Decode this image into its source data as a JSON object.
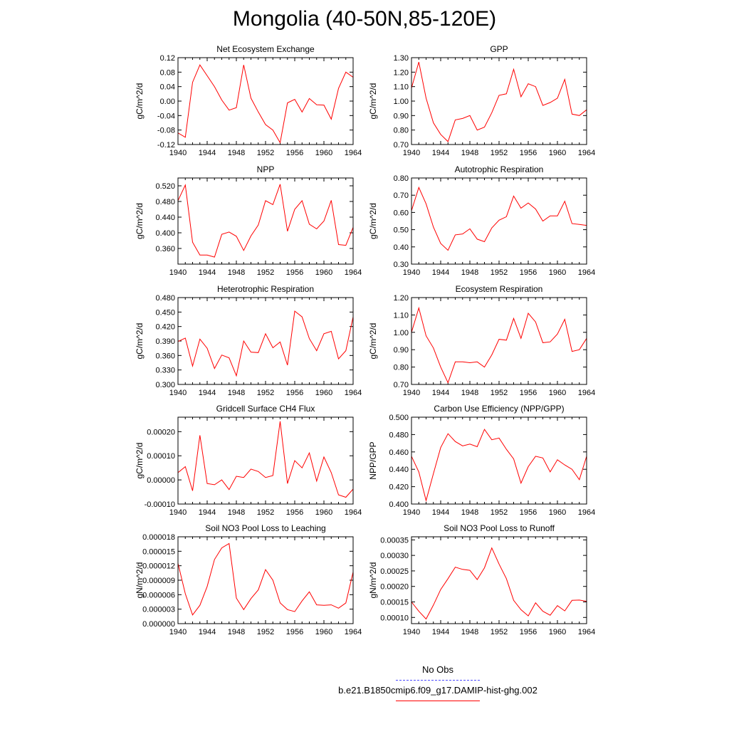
{
  "figure": {
    "title": "Mongolia (40-50N,85-120E)"
  },
  "legend": {
    "obs_label": "No Obs",
    "model_label": "b.e21.B1850cmip6.f09_g17.DAMIP-hist-ghg.002",
    "obs_color": "#4c4cff",
    "model_color": "#ff0000"
  },
  "chart_data": [
    {
      "type": "line",
      "title": "Net Ecosystem Exchange",
      "ylabel": "gC/m^2/d",
      "xlim": [
        1940,
        1964
      ],
      "ylim": [
        -0.12,
        0.12
      ],
      "xticks": [
        1940,
        1944,
        1948,
        1952,
        1956,
        1960,
        1964
      ],
      "yticks": [
        "-0.12",
        "-0.08",
        "-0.04",
        "0.00",
        "0.04",
        "0.08",
        "0.12"
      ],
      "series": [
        {
          "color": "#ff0000",
          "x": [
            1940,
            1941,
            1942,
            1943,
            1944,
            1945,
            1946,
            1947,
            1948,
            1949,
            1950,
            1951,
            1952,
            1953,
            1954,
            1955,
            1956,
            1957,
            1958,
            1959,
            1960,
            1961,
            1962,
            1963,
            1964
          ],
          "y": [
            -0.088,
            -0.1,
            0.052,
            0.1,
            0.07,
            0.04,
            0.003,
            -0.025,
            -0.018,
            0.1,
            0.008,
            -0.03,
            -0.065,
            -0.08,
            -0.115,
            -0.005,
            0.005,
            -0.03,
            0.007,
            -0.01,
            -0.011,
            -0.05,
            0.035,
            0.08,
            0.066
          ]
        }
      ]
    },
    {
      "type": "line",
      "title": "GPP",
      "ylabel": "gC/m^2/d",
      "xlim": [
        1940,
        1964
      ],
      "ylim": [
        0.7,
        1.3
      ],
      "xticks": [
        1940,
        1944,
        1948,
        1952,
        1956,
        1960,
        1964
      ],
      "yticks": [
        "0.70",
        "0.80",
        "0.90",
        "1.00",
        "1.10",
        "1.20",
        "1.30"
      ],
      "series": [
        {
          "color": "#ff0000",
          "x": [
            1940,
            1941,
            1942,
            1943,
            1944,
            1945,
            1946,
            1947,
            1948,
            1949,
            1950,
            1951,
            1952,
            1953,
            1954,
            1955,
            1956,
            1957,
            1958,
            1959,
            1960,
            1961,
            1962,
            1963,
            1964
          ],
          "y": [
            1.09,
            1.27,
            1.02,
            0.85,
            0.77,
            0.72,
            0.87,
            0.88,
            0.9,
            0.8,
            0.82,
            0.92,
            1.04,
            1.05,
            1.22,
            1.03,
            1.12,
            1.1,
            0.97,
            0.99,
            1.02,
            1.15,
            0.91,
            0.9,
            0.94
          ]
        }
      ]
    },
    {
      "type": "line",
      "title": "NPP",
      "ylabel": "gC/m^2/d",
      "xlim": [
        1940,
        1964
      ],
      "ylim": [
        0.32,
        0.54
      ],
      "xticks": [
        1940,
        1944,
        1948,
        1952,
        1956,
        1960,
        1964
      ],
      "yticks": [
        "0.360",
        "0.400",
        "0.440",
        "0.480",
        "0.520"
      ],
      "ytick_values": [
        0.36,
        0.4,
        0.44,
        0.48,
        0.52
      ],
      "series": [
        {
          "color": "#ff0000",
          "x": [
            1940,
            1941,
            1942,
            1943,
            1944,
            1945,
            1946,
            1947,
            1948,
            1949,
            1950,
            1951,
            1952,
            1953,
            1954,
            1955,
            1956,
            1957,
            1958,
            1959,
            1960,
            1961,
            1962,
            1963,
            1964
          ],
          "y": [
            0.482,
            0.522,
            0.376,
            0.343,
            0.343,
            0.338,
            0.396,
            0.402,
            0.391,
            0.355,
            0.392,
            0.42,
            0.482,
            0.472,
            0.524,
            0.404,
            0.46,
            0.482,
            0.422,
            0.41,
            0.43,
            0.483,
            0.37,
            0.368,
            0.414
          ]
        }
      ]
    },
    {
      "type": "line",
      "title": "Autotrophic Respiration",
      "ylabel": "gC/m^2/d",
      "xlim": [
        1940,
        1964
      ],
      "ylim": [
        0.3,
        0.8
      ],
      "xticks": [
        1940,
        1944,
        1948,
        1952,
        1956,
        1960,
        1964
      ],
      "yticks": [
        "0.30",
        "0.40",
        "0.50",
        "0.60",
        "0.70",
        "0.80"
      ],
      "series": [
        {
          "color": "#ff0000",
          "x": [
            1940,
            1941,
            1942,
            1943,
            1944,
            1945,
            1946,
            1947,
            1948,
            1949,
            1950,
            1951,
            1952,
            1953,
            1954,
            1955,
            1956,
            1957,
            1958,
            1959,
            1960,
            1961,
            1962,
            1963,
            1964
          ],
          "y": [
            0.61,
            0.745,
            0.65,
            0.515,
            0.42,
            0.38,
            0.47,
            0.475,
            0.505,
            0.445,
            0.43,
            0.51,
            0.555,
            0.575,
            0.695,
            0.625,
            0.655,
            0.62,
            0.55,
            0.58,
            0.58,
            0.665,
            0.535,
            0.53,
            0.525
          ]
        }
      ]
    },
    {
      "type": "line",
      "title": "Heterotrophic Respiration",
      "ylabel": "gC/m^2/d",
      "xlim": [
        1940,
        1964
      ],
      "ylim": [
        0.3,
        0.48
      ],
      "xticks": [
        1940,
        1944,
        1948,
        1952,
        1956,
        1960,
        1964
      ],
      "yticks": [
        "0.300",
        "0.330",
        "0.360",
        "0.390",
        "0.420",
        "0.450",
        "0.480"
      ],
      "series": [
        {
          "color": "#ff0000",
          "x": [
            1940,
            1941,
            1942,
            1943,
            1944,
            1945,
            1946,
            1947,
            1948,
            1949,
            1950,
            1951,
            1952,
            1953,
            1954,
            1955,
            1956,
            1957,
            1958,
            1959,
            1960,
            1961,
            1962,
            1963,
            1964
          ],
          "y": [
            0.389,
            0.396,
            0.338,
            0.394,
            0.375,
            0.333,
            0.361,
            0.355,
            0.318,
            0.39,
            0.367,
            0.366,
            0.405,
            0.376,
            0.388,
            0.34,
            0.452,
            0.44,
            0.395,
            0.37,
            0.405,
            0.41,
            0.353,
            0.37,
            0.44
          ]
        }
      ]
    },
    {
      "type": "line",
      "title": "Ecosystem Respiration",
      "ylabel": "gC/m^2/d",
      "xlim": [
        1940,
        1964
      ],
      "ylim": [
        0.7,
        1.2
      ],
      "xticks": [
        1940,
        1944,
        1948,
        1952,
        1956,
        1960,
        1964
      ],
      "yticks": [
        "0.70",
        "0.80",
        "0.90",
        "1.00",
        "1.10",
        "1.20"
      ],
      "series": [
        {
          "color": "#ff0000",
          "x": [
            1940,
            1941,
            1942,
            1943,
            1944,
            1945,
            1946,
            1947,
            1948,
            1949,
            1950,
            1951,
            1952,
            1953,
            1954,
            1955,
            1956,
            1957,
            1958,
            1959,
            1960,
            1961,
            1962,
            1963,
            1964
          ],
          "y": [
            1.0,
            1.14,
            0.98,
            0.91,
            0.8,
            0.71,
            0.83,
            0.83,
            0.825,
            0.83,
            0.8,
            0.87,
            0.96,
            0.955,
            1.08,
            0.965,
            1.11,
            1.06,
            0.94,
            0.945,
            0.99,
            1.075,
            0.89,
            0.9,
            0.965
          ]
        }
      ]
    },
    {
      "type": "line",
      "title": "Gridcell Surface CH4 Flux",
      "ylabel": "gC/m^2/d",
      "xlim": [
        1940,
        1964
      ],
      "ylim": [
        -0.0001,
        0.00026
      ],
      "xticks": [
        1940,
        1944,
        1948,
        1952,
        1956,
        1960,
        1964
      ],
      "yticks": [
        "-0.00010",
        "0.00000",
        "0.00010",
        "0.00020"
      ],
      "ytick_values": [
        -0.0001,
        0.0,
        0.0001,
        0.0002
      ],
      "series": [
        {
          "color": "#ff0000",
          "x": [
            1940,
            1941,
            1942,
            1943,
            1944,
            1945,
            1946,
            1947,
            1948,
            1949,
            1950,
            1951,
            1952,
            1953,
            1954,
            1955,
            1956,
            1957,
            1958,
            1959,
            1960,
            1961,
            1962,
            1963,
            1964
          ],
          "y": [
            3e-05,
            5.5e-05,
            -4.5e-05,
            0.000185,
            -1.5e-05,
            -2e-05,
            0.0,
            -4e-05,
            1.5e-05,
            1e-05,
            4.5e-05,
            3.5e-05,
            1e-05,
            1.8e-05,
            0.000243,
            -1.5e-05,
            8e-05,
            5e-05,
            0.000112,
            -5e-06,
            9.5e-05,
            3e-05,
            -6.2e-05,
            -7.2e-05,
            -3.8e-05
          ]
        }
      ]
    },
    {
      "type": "line",
      "title": "Carbon Use Efficiency (NPP/GPP)",
      "ylabel": "NPP/GPP",
      "xlim": [
        1940,
        1964
      ],
      "ylim": [
        0.4,
        0.5
      ],
      "xticks": [
        1940,
        1944,
        1948,
        1952,
        1956,
        1960,
        1964
      ],
      "yticks": [
        "0.400",
        "0.420",
        "0.440",
        "0.460",
        "0.480",
        "0.500"
      ],
      "series": [
        {
          "color": "#ff0000",
          "x": [
            1940,
            1941,
            1942,
            1943,
            1944,
            1945,
            1946,
            1947,
            1948,
            1949,
            1950,
            1951,
            1952,
            1953,
            1954,
            1955,
            1956,
            1957,
            1958,
            1959,
            1960,
            1961,
            1962,
            1963,
            1964
          ],
          "y": [
            0.455,
            0.437,
            0.404,
            0.435,
            0.465,
            0.481,
            0.472,
            0.467,
            0.469,
            0.466,
            0.486,
            0.474,
            0.476,
            0.463,
            0.452,
            0.424,
            0.443,
            0.455,
            0.453,
            0.437,
            0.451,
            0.445,
            0.44,
            0.428,
            0.455
          ]
        }
      ]
    },
    {
      "type": "line",
      "title": "Soil NO3 Pool Loss to Leaching",
      "ylabel": "gN/m^2/d",
      "xlim": [
        1940,
        1964
      ],
      "ylim": [
        0.0,
        1.8e-05
      ],
      "xticks": [
        1940,
        1944,
        1948,
        1952,
        1956,
        1960,
        1964
      ],
      "yticks": [
        "0.000000",
        "0.000003",
        "0.000006",
        "0.000009",
        "0.000012",
        "0.000015",
        "0.000018"
      ],
      "series": [
        {
          "color": "#ff0000",
          "x": [
            1940,
            1941,
            1942,
            1943,
            1944,
            1945,
            1946,
            1947,
            1948,
            1949,
            1950,
            1951,
            1952,
            1953,
            1954,
            1955,
            1956,
            1957,
            1958,
            1959,
            1960,
            1961,
            1962,
            1963,
            1964
          ],
          "y": [
            1.25e-05,
            6.2e-06,
            1.8e-06,
            3.8e-06,
            7.7e-06,
            1.33e-05,
            1.57e-05,
            1.66e-05,
            5.3e-06,
            2.9e-06,
            5.2e-06,
            7e-06,
            1.12e-05,
            9e-06,
            4.3e-06,
            2.9e-06,
            2.5e-06,
            4.7e-06,
            6.6e-06,
            3.9e-06,
            3.8e-06,
            3.9e-06,
            3.2e-06,
            4.3e-06,
            1.07e-05
          ]
        }
      ]
    },
    {
      "type": "line",
      "title": "Soil NO3 Pool Loss to Runoff",
      "ylabel": "gN/m^2/d",
      "xlim": [
        1940,
        1964
      ],
      "ylim": [
        8e-05,
        0.00036
      ],
      "xticks": [
        1940,
        1944,
        1948,
        1952,
        1956,
        1960,
        1964
      ],
      "yticks": [
        "0.00010",
        "0.00015",
        "0.00020",
        "0.00025",
        "0.00030",
        "0.00035"
      ],
      "ytick_values": [
        0.0001,
        0.00015,
        0.0002,
        0.00025,
        0.0003,
        0.00035
      ],
      "series": [
        {
          "color": "#ff0000",
          "x": [
            1940,
            1941,
            1942,
            1943,
            1944,
            1945,
            1946,
            1947,
            1948,
            1949,
            1950,
            1951,
            1952,
            1953,
            1954,
            1955,
            1956,
            1957,
            1958,
            1959,
            1960,
            1961,
            1962,
            1963,
            1964
          ],
          "y": [
            0.00015,
            0.00012,
            9.5e-05,
            0.00014,
            0.00019,
            0.000225,
            0.000262,
            0.000255,
            0.000252,
            0.000222,
            0.00026,
            0.000324,
            0.000272,
            0.000225,
            0.000155,
            0.000125,
            0.000105,
            0.000147,
            0.00012,
            0.000107,
            0.000138,
            0.000121,
            0.000155,
            0.000156,
            0.000152
          ]
        }
      ]
    }
  ]
}
